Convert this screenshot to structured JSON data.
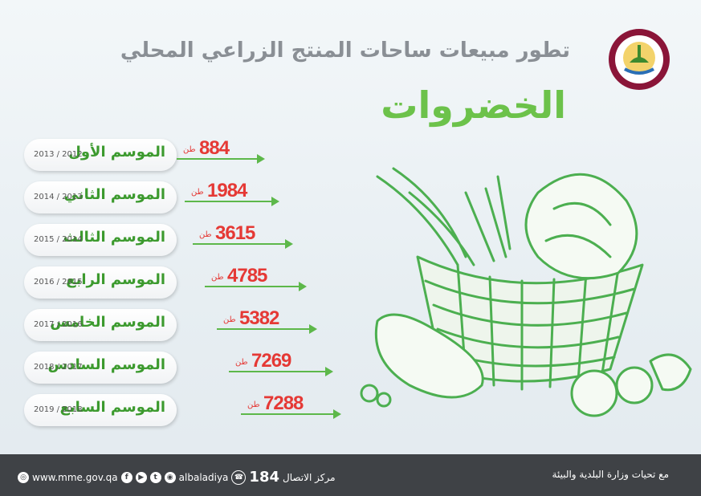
{
  "header": {
    "title": "تطور مبيعات ساحات المنتج الزراعي المحلي",
    "subtitle": "الخضروات",
    "logo_text": "وزارة البلدية والبيئة"
  },
  "seasons": [
    {
      "name": "الموسم الأول",
      "years": "2013 / 2012",
      "value": "884",
      "unit": "طن"
    },
    {
      "name": "الموسم الثاني",
      "years": "2014 / 2013",
      "value": "1984",
      "unit": "طن"
    },
    {
      "name": "الموسم الثالث",
      "years": "2015 / 2014",
      "value": "3615",
      "unit": "طن"
    },
    {
      "name": "الموسم الرابع",
      "years": "2016 / 2015",
      "value": "4785",
      "unit": "طن"
    },
    {
      "name": "الموسم الخامس",
      "years": "2017 / 2016",
      "value": "5382",
      "unit": "طن"
    },
    {
      "name": "الموسم السادس",
      "years": "2018 / 2017",
      "value": "7269",
      "unit": "طن"
    },
    {
      "name": "الموسم السابع",
      "years": "2019 / 2018",
      "value": "7288",
      "unit": "طن"
    }
  ],
  "footer": {
    "website": "www.mme.gov.qa",
    "handle": "albaladiya",
    "hotline_number": "184",
    "hotline_label": "مركز الاتصال",
    "credit": "مع تحيات وزارة البلدية والبيئة",
    "social_icons": [
      "facebook-icon",
      "youtube-icon",
      "twitter-icon",
      "instagram-icon"
    ]
  },
  "colors": {
    "accent_green": "#6cc24a",
    "value_red": "#e53935",
    "footer_bg": "#3f4246"
  }
}
